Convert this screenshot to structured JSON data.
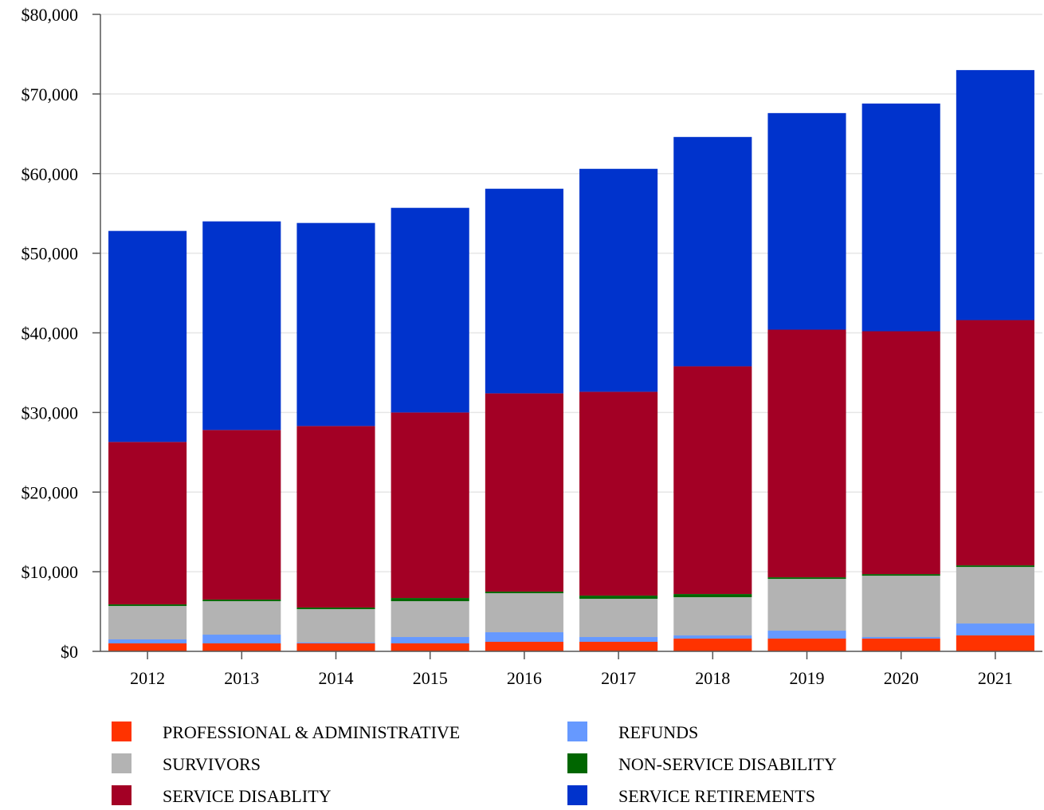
{
  "chart_data": {
    "type": "bar",
    "stacked": true,
    "categories": [
      "2012",
      "2013",
      "2014",
      "2015",
      "2016",
      "2017",
      "2018",
      "2019",
      "2020",
      "2021"
    ],
    "ylim": [
      0,
      80000
    ],
    "yticks": [
      0,
      10000,
      20000,
      30000,
      40000,
      50000,
      60000,
      70000,
      80000
    ],
    "ytick_labels": [
      "$0",
      "$10,000",
      "$20,000",
      "$30,000",
      "$40,000",
      "$50,000",
      "$60,000",
      "$70,000",
      "$80,000"
    ],
    "grid": true,
    "legend_position": "bottom",
    "series": [
      {
        "name": "PROFESSIONAL & ADMINISTRATIVE",
        "color": "#ff3300",
        "values": [
          1000,
          1000,
          1000,
          1000,
          1200,
          1200,
          1600,
          1600,
          1600,
          2000
        ]
      },
      {
        "name": "REFUNDS",
        "color": "#6699ff",
        "values": [
          500,
          1100,
          100,
          800,
          1200,
          600,
          400,
          1000,
          200,
          1500
        ]
      },
      {
        "name": "SURVIVORS",
        "color": "#b3b3b3",
        "values": [
          4200,
          4200,
          4200,
          4500,
          4900,
          4800,
          4800,
          6500,
          7700,
          7100
        ]
      },
      {
        "name": "NON-SERVICE DISABILITY",
        "color": "#006600",
        "values": [
          200,
          200,
          200,
          400,
          200,
          400,
          400,
          200,
          200,
          200
        ]
      },
      {
        "name": "SERVICE DISABLITY",
        "color": "#a30025",
        "values": [
          20400,
          21300,
          22800,
          23300,
          24900,
          25600,
          28600,
          31100,
          30500,
          30800
        ]
      },
      {
        "name": "SERVICE RETIREMENTS",
        "color": "#0033cc",
        "values": [
          26500,
          26200,
          25500,
          25700,
          25700,
          28000,
          28800,
          27200,
          28600,
          31400
        ]
      }
    ],
    "legend_order": [
      0,
      1,
      2,
      3,
      4,
      5
    ]
  }
}
